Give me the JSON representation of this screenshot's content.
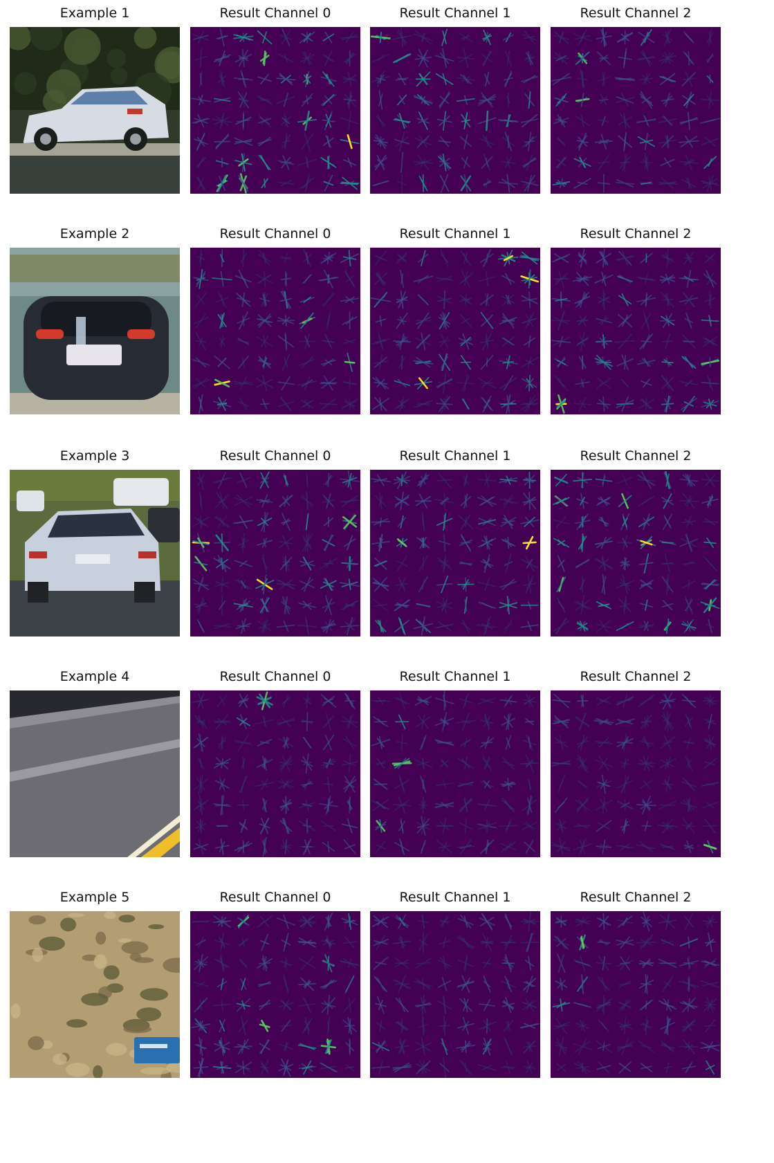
{
  "figure": {
    "rows": [
      {
        "example_title": "Example 1",
        "scene": "car-side",
        "scene_colors": {
          "sky": "#2f3a2a",
          "trees": "#1f2a18",
          "body": "#d7dbe4",
          "road": "#39413c",
          "shadow": "#1b1f1c"
        },
        "channel_titles": [
          "Result Channel 0",
          "Result Channel 1",
          "Result Channel 2"
        ]
      },
      {
        "example_title": "Example 2",
        "scene": "car-rear-blurred",
        "scene_colors": {
          "sky": "#6f8a86",
          "trees": "#7a7d50",
          "body": "#272b34",
          "road": "#b6b3a2",
          "shadow": "#171a20"
        },
        "channel_titles": [
          "Result Channel 0",
          "Result Channel 1",
          "Result Channel 2"
        ]
      },
      {
        "example_title": "Example 3",
        "scene": "car-rear-traffic",
        "scene_colors": {
          "sky": "#5c6b3e",
          "trees": "#6a7a3c",
          "body": "#c7d0dc",
          "road": "#3d4148",
          "shadow": "#202226"
        },
        "channel_titles": [
          "Result Channel 0",
          "Result Channel 1",
          "Result Channel 2"
        ]
      },
      {
        "example_title": "Example 4",
        "scene": "road-surface",
        "scene_colors": {
          "sky": "#27292f",
          "trees": "#3a3c42",
          "body": "#76767c",
          "road": "#6c6c72",
          "shadow": "#f0be2a"
        },
        "channel_titles": [
          "Result Channel 0",
          "Result Channel 1",
          "Result Channel 2"
        ]
      },
      {
        "example_title": "Example 5",
        "scene": "roadside-brush",
        "scene_colors": {
          "sky": "#8f8366",
          "trees": "#5a5a36",
          "body": "#a48f68",
          "road": "#b39d72",
          "shadow": "#2a6fb0"
        },
        "channel_titles": [
          "Result Channel 0",
          "Result Channel 1",
          "Result Channel 2"
        ]
      }
    ],
    "colormap": {
      "name": "viridis",
      "background": "#440154",
      "low": "#3b528b",
      "mid": "#21908d",
      "high": "#5dc963",
      "peak": "#fde725"
    },
    "hog_grid_cells": 8
  }
}
